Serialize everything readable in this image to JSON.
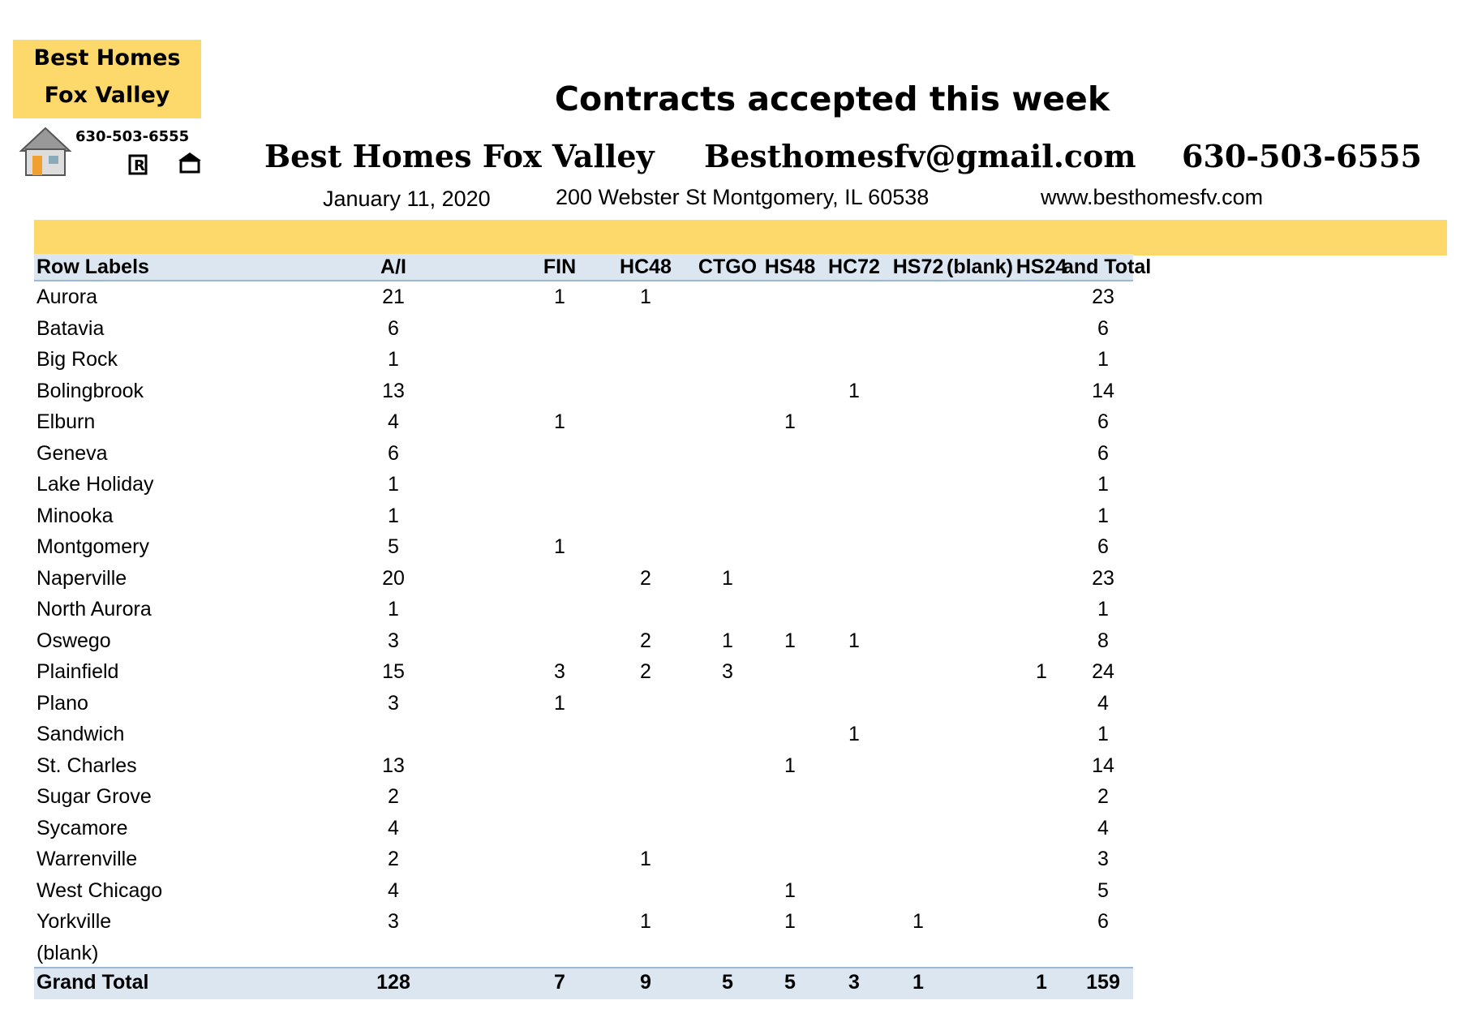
{
  "header": {
    "logo_line1": "Best Homes",
    "logo_line2": "Fox Valley",
    "logo_phone": "630-503-6555",
    "title": "Contracts accepted this week",
    "brand": "Best Homes Fox Valley",
    "email": "Besthomesfv@gmail.com",
    "phone": "630-503-6555",
    "date": "January 11, 2020",
    "address": "200 Webster St Montgomery, IL 60538",
    "website": "www.besthomesfv.com"
  },
  "table": {
    "columns": [
      "Row Labels",
      "A/I",
      "FIN",
      "HC48",
      "CTGO",
      "HS48",
      "HC72",
      "HS72",
      "(blank)",
      "HS24",
      "and Total"
    ],
    "rows": [
      [
        "Aurora",
        21,
        1,
        1,
        null,
        null,
        null,
        null,
        null,
        null,
        23
      ],
      [
        "Batavia",
        6,
        null,
        null,
        null,
        null,
        null,
        null,
        null,
        null,
        6
      ],
      [
        "Big Rock",
        1,
        null,
        null,
        null,
        null,
        null,
        null,
        null,
        null,
        1
      ],
      [
        "Bolingbrook",
        13,
        null,
        null,
        null,
        null,
        1,
        null,
        null,
        null,
        14
      ],
      [
        "Elburn",
        4,
        1,
        null,
        null,
        1,
        null,
        null,
        null,
        null,
        6
      ],
      [
        "Geneva",
        6,
        null,
        null,
        null,
        null,
        null,
        null,
        null,
        null,
        6
      ],
      [
        "Lake Holiday",
        1,
        null,
        null,
        null,
        null,
        null,
        null,
        null,
        null,
        1
      ],
      [
        "Minooka",
        1,
        null,
        null,
        null,
        null,
        null,
        null,
        null,
        null,
        1
      ],
      [
        "Montgomery",
        5,
        1,
        null,
        null,
        null,
        null,
        null,
        null,
        null,
        6
      ],
      [
        "Naperville",
        20,
        null,
        2,
        1,
        null,
        null,
        null,
        null,
        null,
        23
      ],
      [
        "North Aurora",
        1,
        null,
        null,
        null,
        null,
        null,
        null,
        null,
        null,
        1
      ],
      [
        "Oswego",
        3,
        null,
        2,
        1,
        1,
        1,
        null,
        null,
        null,
        8
      ],
      [
        "Plainfield",
        15,
        3,
        2,
        3,
        null,
        null,
        null,
        null,
        1,
        24
      ],
      [
        "Plano",
        3,
        1,
        null,
        null,
        null,
        null,
        null,
        null,
        null,
        4
      ],
      [
        "Sandwich",
        null,
        null,
        null,
        null,
        null,
        1,
        null,
        null,
        null,
        1
      ],
      [
        "St. Charles",
        13,
        null,
        null,
        null,
        1,
        null,
        null,
        null,
        null,
        14
      ],
      [
        "Sugar Grove",
        2,
        null,
        null,
        null,
        null,
        null,
        null,
        null,
        null,
        2
      ],
      [
        "Sycamore",
        4,
        null,
        null,
        null,
        null,
        null,
        null,
        null,
        null,
        4
      ],
      [
        "Warrenville",
        2,
        null,
        1,
        null,
        null,
        null,
        null,
        null,
        null,
        3
      ],
      [
        "West Chicago",
        4,
        null,
        null,
        null,
        1,
        null,
        null,
        null,
        null,
        5
      ],
      [
        "Yorkville",
        3,
        null,
        1,
        null,
        1,
        null,
        1,
        null,
        null,
        6
      ],
      [
        "(blank)",
        null,
        null,
        null,
        null,
        null,
        null,
        null,
        null,
        null,
        null
      ]
    ],
    "total": [
      "Grand Total",
      128,
      7,
      9,
      5,
      5,
      3,
      1,
      null,
      1,
      159
    ]
  }
}
